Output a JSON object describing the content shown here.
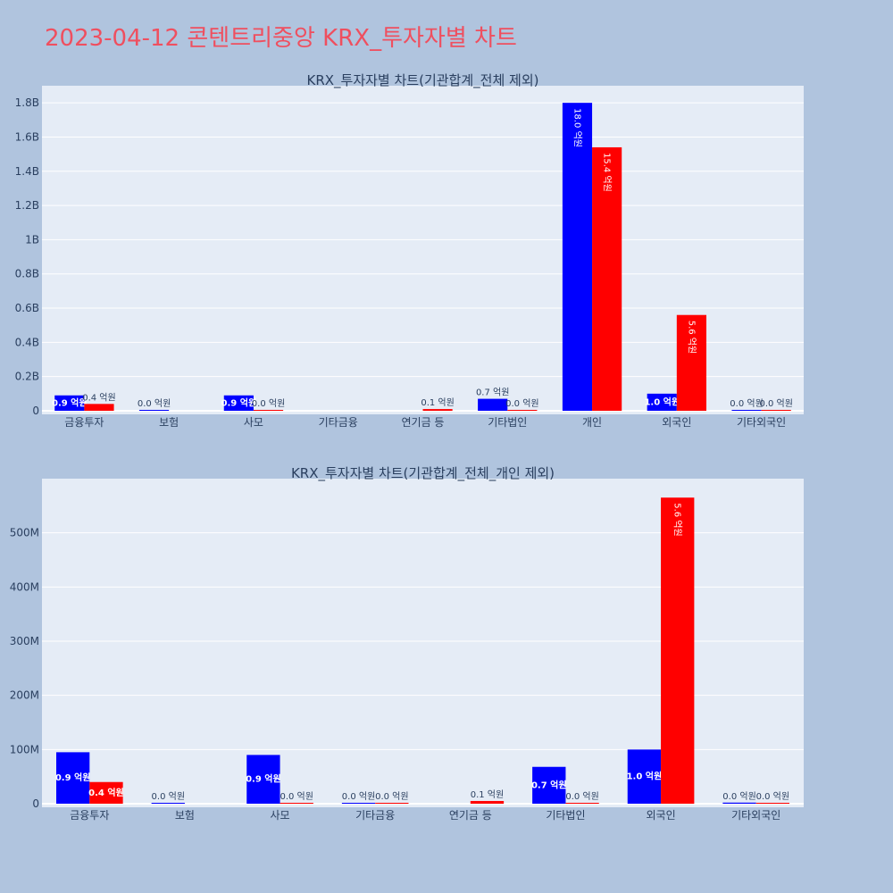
{
  "page": {
    "title": "2023-04-12 콘텐트리중앙 KRX_투자자별 차트"
  },
  "colors": {
    "background": "#b0c4de",
    "plot_bg": "#e5ecf6",
    "buy": "#0000ff",
    "sell": "#ff0000",
    "title": "#ef4f5f"
  },
  "chart_data": [
    {
      "type": "bar",
      "title": "KRX_투자자별 차트(기관합계_전체 제외)",
      "categories": [
        "금융투자",
        "보험",
        "사모",
        "기타금융",
        "연기금 등",
        "기타법인",
        "개인",
        "외국인",
        "기타외국인"
      ],
      "ylim": [
        0,
        1900000000
      ],
      "yticks": [
        0,
        200000000,
        400000000,
        600000000,
        800000000,
        1000000000,
        1200000000,
        1400000000,
        1600000000,
        1800000000
      ],
      "yticklabels": [
        "0",
        "0.2B",
        "0.4B",
        "0.6B",
        "0.8B",
        "1B",
        "1.2B",
        "1.4B",
        "1.6B",
        "1.8B"
      ],
      "grid": true,
      "series": [
        {
          "color": "#0000ff",
          "values": [
            90000000,
            0,
            90000000,
            null,
            null,
            70000000,
            1800000000,
            100000000,
            0
          ],
          "labels": [
            "0.9 억원",
            "0.0 억원",
            "0.9 억원",
            null,
            null,
            "0.7 억원",
            "18.0 억원",
            "1.0 억원",
            "0.0 억원"
          ]
        },
        {
          "color": "#ff0000",
          "values": [
            40000000,
            null,
            0,
            null,
            10000000,
            0,
            1540000000,
            560000000,
            0
          ],
          "labels": [
            "0.4 억원",
            null,
            "0.0 억원",
            null,
            "0.1 억원",
            "0.0 억원",
            "15.4 억원",
            "5.6 억원",
            "0.0 억원"
          ]
        }
      ]
    },
    {
      "type": "bar",
      "title": "KRX_투자자별 차트(기관합계_전체_개인 제외)",
      "categories": [
        "금융투자",
        "보험",
        "사모",
        "기타금융",
        "연기금 등",
        "기타법인",
        "외국인",
        "기타외국인"
      ],
      "ylim": [
        0,
        600000000
      ],
      "yticks": [
        0,
        100000000,
        200000000,
        300000000,
        400000000,
        500000000
      ],
      "yticklabels": [
        "0",
        "100M",
        "200M",
        "300M",
        "400M",
        "500M"
      ],
      "grid": true,
      "series": [
        {
          "color": "#0000ff",
          "values": [
            95000000,
            0,
            90000000,
            0,
            null,
            68000000,
            100000000,
            2000000
          ],
          "labels": [
            "0.9 억원",
            "0.0 억원",
            "0.9 억원",
            "0.0 억원",
            null,
            "0.7 억원",
            "1.0 억원",
            "0.0 억원"
          ]
        },
        {
          "color": "#ff0000",
          "values": [
            40000000,
            null,
            1000000,
            0,
            5000000,
            1000000,
            565000000,
            0
          ],
          "labels": [
            "0.4 억원",
            null,
            "0.0 억원",
            "0.0 억원",
            "0.1 억원",
            "0.0 억원",
            "5.6 억원",
            "0.0 억원"
          ]
        }
      ]
    }
  ]
}
